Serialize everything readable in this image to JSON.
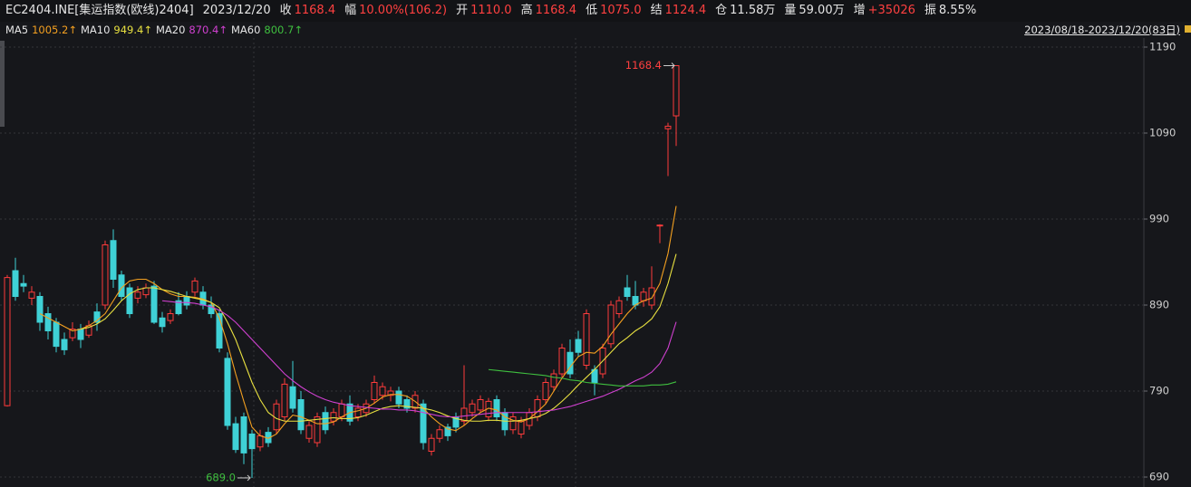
{
  "quote": {
    "symbol": "EC2404.INE[集运指数(欧线)2404]",
    "date": "2023/12/20",
    "fields": [
      {
        "label": "收",
        "value": "1168.4",
        "color": "#ff4040"
      },
      {
        "label": "幅",
        "value": "10.00%(106.2)",
        "color": "#ff4040"
      },
      {
        "label": "开",
        "value": "1110.0",
        "color": "#ff4040"
      },
      {
        "label": "高",
        "value": "1168.4",
        "color": "#ff4040"
      },
      {
        "label": "低",
        "value": "1075.0",
        "color": "#ff4040"
      },
      {
        "label": "结",
        "value": "1124.4",
        "color": "#ff4040"
      },
      {
        "label": "仓",
        "value": "11.58万",
        "color": "#e6e6e6"
      },
      {
        "label": "量",
        "value": "59.00万",
        "color": "#e6e6e6"
      },
      {
        "label": "增",
        "value": "+35026",
        "color": "#ff4040"
      },
      {
        "label": "振",
        "value": "8.55%",
        "color": "#e6e6e6"
      }
    ]
  },
  "chart_data": {
    "type": "candlestick",
    "range_label": "2023/08/18-2023/12/20(83日)",
    "ylim": [
      690,
      1190
    ],
    "yticks": [
      690,
      790,
      890,
      990,
      1090,
      1190
    ],
    "grid": true,
    "up_color": "#ff3b3b",
    "down_color": "#3fd1d6",
    "high_label": "1168.4",
    "high_label_color": "#ff4040",
    "low_label": "689.0",
    "low_label_color": "#3fbf3f",
    "ohlc": {
      "open": [
        773,
        930,
        915,
        898,
        900,
        880,
        870,
        850,
        852,
        862,
        855,
        882,
        890,
        965,
        925,
        910,
        898,
        902,
        912,
        875,
        872,
        895,
        900,
        905,
        905,
        890,
        880,
        828,
        752,
        760,
        740,
        725,
        742,
        745,
        760,
        795,
        780,
        735,
        730,
        765,
        755,
        760,
        775,
        760,
        765,
        780,
        785,
        785,
        790,
        780,
        770,
        775,
        720,
        735,
        748,
        760,
        755,
        765,
        768,
        760,
        780,
        765,
        745,
        740,
        750,
        760,
        780,
        795,
        810,
        835,
        850,
        820,
        815,
        810,
        845,
        880,
        910,
        900,
        895,
        890,
        982,
        1095,
        1110
      ],
      "high": [
        925,
        945,
        925,
        912,
        905,
        888,
        875,
        858,
        870,
        868,
        872,
        892,
        965,
        978,
        930,
        915,
        912,
        915,
        918,
        882,
        885,
        905,
        906,
        922,
        912,
        900,
        885,
        835,
        760,
        765,
        745,
        745,
        748,
        780,
        805,
        825,
        790,
        755,
        765,
        772,
        770,
        780,
        785,
        775,
        780,
        808,
        800,
        795,
        795,
        785,
        790,
        780,
        740,
        750,
        752,
        765,
        820,
        780,
        785,
        782,
        785,
        770,
        765,
        760,
        770,
        785,
        805,
        815,
        845,
        850,
        860,
        885,
        820,
        845,
        895,
        900,
        925,
        918,
        910,
        935,
        984,
        1102,
        1168.4
      ],
      "low": [
        772,
        895,
        905,
        890,
        860,
        850,
        835,
        832,
        848,
        840,
        852,
        860,
        885,
        910,
        895,
        875,
        892,
        898,
        868,
        858,
        868,
        878,
        885,
        900,
        885,
        875,
        835,
        745,
        718,
        705,
        689,
        720,
        725,
        740,
        755,
        765,
        740,
        730,
        725,
        740,
        750,
        755,
        750,
        755,
        760,
        775,
        780,
        778,
        770,
        765,
        765,
        722,
        715,
        730,
        732,
        742,
        750,
        760,
        765,
        755,
        755,
        738,
        740,
        735,
        745,
        755,
        775,
        790,
        805,
        805,
        830,
        815,
        785,
        805,
        840,
        875,
        895,
        885,
        888,
        885,
        962,
        1040,
        1075
      ],
      "close": [
        922,
        900,
        912,
        905,
        870,
        860,
        842,
        838,
        862,
        850,
        866,
        870,
        960,
        920,
        900,
        880,
        905,
        910,
        870,
        865,
        880,
        880,
        890,
        918,
        890,
        880,
        840,
        750,
        722,
        718,
        723,
        738,
        730,
        775,
        798,
        770,
        745,
        750,
        760,
        745,
        765,
        775,
        755,
        770,
        775,
        800,
        795,
        790,
        775,
        770,
        785,
        730,
        735,
        745,
        738,
        748,
        770,
        775,
        780,
        778,
        760,
        745,
        760,
        755,
        765,
        780,
        800,
        810,
        840,
        810,
        835,
        880,
        800,
        840,
        890,
        895,
        900,
        890,
        905,
        910,
        983,
        1098,
        1168.4
      ]
    },
    "series": [
      {
        "name": "MA5",
        "value_label": "1005.2↑",
        "color": "#f4a020",
        "values": [
          null,
          null,
          null,
          null,
          880,
          875,
          870,
          865,
          860,
          862,
          866,
          872,
          880,
          895,
          910,
          918,
          920,
          920,
          915,
          908,
          903,
          900,
          900,
          899,
          897,
          893,
          875,
          845,
          810,
          778,
          748,
          738,
          735,
          740,
          752,
          762,
          760,
          756,
          752,
          752,
          754,
          760,
          765,
          767,
          770,
          776,
          783,
          786,
          786,
          784,
          778,
          770,
          760,
          752,
          746,
          744,
          750,
          758,
          765,
          770,
          768,
          760,
          756,
          754,
          758,
          766,
          775,
          790,
          805,
          818,
          830,
          835,
          834,
          842,
          856,
          868,
          880,
          890,
          895,
          898,
          915,
          950,
          1005.2
        ]
      },
      {
        "name": "MA10",
        "value_label": "949.4↑",
        "color": "#e8e040",
        "values": [
          null,
          null,
          null,
          null,
          null,
          null,
          null,
          null,
          null,
          862,
          864,
          868,
          874,
          884,
          895,
          903,
          908,
          910,
          910,
          908,
          906,
          903,
          900,
          898,
          896,
          893,
          887,
          870,
          850,
          825,
          800,
          780,
          765,
          758,
          755,
          755,
          755,
          756,
          757,
          758,
          759,
          758,
          758,
          759,
          762,
          766,
          770,
          772,
          773,
          772,
          771,
          770,
          768,
          765,
          761,
          758,
          756,
          755,
          755,
          756,
          756,
          755,
          755,
          756,
          758,
          760,
          764,
          770,
          778,
          787,
          797,
          806,
          815,
          825,
          835,
          845,
          852,
          860,
          866,
          874,
          888,
          915,
          949.4
        ]
      },
      {
        "name": "MA20",
        "value_label": "870.4↑",
        "color": "#d040d0",
        "values": [
          null,
          null,
          null,
          null,
          null,
          null,
          null,
          null,
          null,
          null,
          null,
          null,
          null,
          null,
          null,
          null,
          null,
          null,
          null,
          895,
          894,
          893,
          893,
          892,
          890,
          888,
          884,
          878,
          870,
          860,
          850,
          840,
          830,
          820,
          810,
          802,
          795,
          789,
          784,
          780,
          777,
          775,
          773,
          772,
          771,
          770,
          769,
          769,
          768,
          768,
          767,
          765,
          763,
          761,
          760,
          760,
          761,
          762,
          763,
          764,
          765,
          765,
          765,
          765,
          765,
          766,
          767,
          768,
          770,
          772,
          775,
          778,
          781,
          784,
          788,
          792,
          797,
          802,
          806,
          812,
          822,
          840,
          870.4
        ]
      },
      {
        "name": "MA60",
        "value_label": "800.7↑",
        "color": "#3fbf3f",
        "values": [
          null,
          null,
          null,
          null,
          null,
          null,
          null,
          null,
          null,
          null,
          null,
          null,
          null,
          null,
          null,
          null,
          null,
          null,
          null,
          null,
          null,
          null,
          null,
          null,
          null,
          null,
          null,
          null,
          null,
          null,
          null,
          null,
          null,
          null,
          null,
          null,
          null,
          null,
          null,
          null,
          null,
          null,
          null,
          null,
          null,
          null,
          null,
          null,
          null,
          null,
          null,
          null,
          null,
          null,
          null,
          null,
          null,
          null,
          null,
          815,
          814,
          813,
          812,
          811,
          810,
          809,
          808,
          806,
          805,
          803,
          802,
          800,
          799,
          798,
          797,
          796,
          796,
          796,
          796,
          797,
          797,
          798,
          800.7
        ]
      }
    ]
  }
}
